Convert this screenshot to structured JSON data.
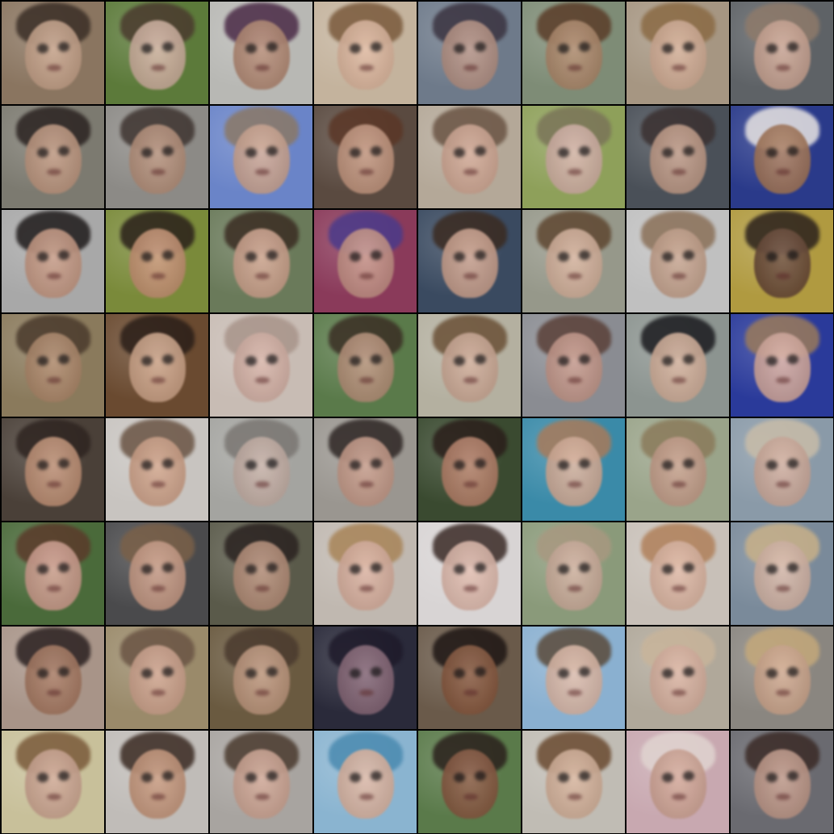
{
  "grid": {
    "rows": 8,
    "columns": 8,
    "tiles": [
      {
        "bg": "#8a7560",
        "skin": "#c9a58c",
        "hair": "#3a2e26"
      },
      {
        "bg": "#5c7a3a",
        "skin": "#d1b2a0",
        "hair": "#4a3a2e"
      },
      {
        "bg": "#b8b8b4",
        "skin": "#b58a74",
        "hair": "#4a2a46"
      },
      {
        "bg": "#c4b39d",
        "skin": "#e0b9a0",
        "hair": "#7a5a3c"
      },
      {
        "bg": "#6e7a8a",
        "skin": "#b89486",
        "hair": "#3a3340"
      },
      {
        "bg": "#7e8c76",
        "skin": "#b08a6c",
        "hair": "#5a3c28"
      },
      {
        "bg": "#a69682",
        "skin": "#d6b098",
        "hair": "#8a6a44"
      },
      {
        "bg": "#5e6266",
        "skin": "#cfa896",
        "hair": "#8e7a6a"
      },
      {
        "bg": "#7c7a70",
        "skin": "#c29a82",
        "hair": "#2a2220"
      },
      {
        "bg": "#8c8a86",
        "skin": "#b8927c",
        "hair": "#3e3430"
      },
      {
        "bg": "#6a84c8",
        "skin": "#d0a894",
        "hair": "#8a7866"
      },
      {
        "bg": "#5a4a40",
        "skin": "#c89a82",
        "hair": "#5a3626"
      },
      {
        "bg": "#b4a898",
        "skin": "#d4aa96",
        "hair": "#6a5444"
      },
      {
        "bg": "#8ea05a",
        "skin": "#d6b4a8",
        "hair": "#7a7458"
      },
      {
        "bg": "#4a5058",
        "skin": "#c49e8a",
        "hair": "#3a3030"
      },
      {
        "bg": "#2a3a8a",
        "skin": "#a6785a",
        "hair": "#e8e4e2"
      },
      {
        "bg": "#a8a8a8",
        "skin": "#c89a84",
        "hair": "#1e1a1a"
      },
      {
        "bg": "#7a8a3a",
        "skin": "#c89474",
        "hair": "#2a201a"
      },
      {
        "bg": "#6a7a5a",
        "skin": "#d2a690",
        "hair": "#3a2c22"
      },
      {
        "bg": "#8a3a5a",
        "skin": "#c89488",
        "hair": "#4a3a8a"
      },
      {
        "bg": "#3a4a60",
        "skin": "#cfa490",
        "hair": "#3a2a20"
      },
      {
        "bg": "#96988a",
        "skin": "#d8b49e",
        "hair": "#5e4630"
      },
      {
        "bg": "#c0c0c0",
        "skin": "#c8a48e",
        "hair": "#8a7058"
      },
      {
        "bg": "#b09a40",
        "skin": "#6a4a38",
        "hair": "#2a201c"
      },
      {
        "bg": "#8a7a5c",
        "skin": "#b08a6c",
        "hair": "#4a3a2c"
      },
      {
        "bg": "#6a4a30",
        "skin": "#d2a88c",
        "hair": "#2a1e18"
      },
      {
        "bg": "#c8bcb4",
        "skin": "#d8b4a8",
        "hair": "#a8948a"
      },
      {
        "bg": "#5a7a4a",
        "skin": "#b8927a",
        "hair": "#3a2e24"
      },
      {
        "bg": "#b4b0a0",
        "skin": "#d0ac98",
        "hair": "#6a5036"
      },
      {
        "bg": "#8a8c92",
        "skin": "#c89a8c",
        "hair": "#5a4038"
      },
      {
        "bg": "#8c9490",
        "skin": "#d6b29c",
        "hair": "#1a1a1e"
      },
      {
        "bg": "#2a3a9a",
        "skin": "#d8aca0",
        "hair": "#9a7a5a"
      },
      {
        "bg": "#4a4038",
        "skin": "#c49478",
        "hair": "#2e2420"
      },
      {
        "bg": "#c8c4c0",
        "skin": "#d2a48a",
        "hair": "#6a5444"
      },
      {
        "bg": "#a4a4a0",
        "skin": "#c8b2a8",
        "hair": "#7a7672"
      },
      {
        "bg": "#9a9690",
        "skin": "#c89c8a",
        "hair": "#2e2624"
      },
      {
        "bg": "#3a4a30",
        "skin": "#b8826a",
        "hair": "#2a1e1a"
      },
      {
        "bg": "#3a8aa8",
        "skin": "#d8b09a",
        "hair": "#a87a5a"
      },
      {
        "bg": "#9aa48a",
        "skin": "#c8a08c",
        "hair": "#8a7a5a"
      },
      {
        "bg": "#8a9aa8",
        "skin": "#d2ae9e",
        "hair": "#c8bca8"
      },
      {
        "bg": "#4a6a3a",
        "skin": "#d2a090",
        "hair": "#5a3a2a"
      },
      {
        "bg": "#4a4a4c",
        "skin": "#cc9e88",
        "hair": "#7a6048"
      },
      {
        "bg": "#5a5a4a",
        "skin": "#b8907a",
        "hair": "#2a2220"
      },
      {
        "bg": "#c0b8b0",
        "skin": "#dcb2a0",
        "hair": "#a88458"
      },
      {
        "bg": "#d8d4d4",
        "skin": "#e2bcae",
        "hair": "#3a2a26"
      },
      {
        "bg": "#8a9a7a",
        "skin": "#d0b09e",
        "hair": "#a89880"
      },
      {
        "bg": "#c8c0b8",
        "skin": "#e0b8a4",
        "hair": "#b0805a"
      },
      {
        "bg": "#7a8a9a",
        "skin": "#d8b8a8",
        "hair": "#c8b088"
      },
      {
        "bg": "#a89488",
        "skin": "#a87a62",
        "hair": "#2a2020"
      },
      {
        "bg": "#9a8a6a",
        "skin": "#d2a690",
        "hair": "#6a5444"
      },
      {
        "bg": "#6a5a40",
        "skin": "#c29a80",
        "hair": "#4a3a2e"
      },
      {
        "bg": "#2a2a3a",
        "skin": "#8a6a7a",
        "hair": "#1e1a2a"
      },
      {
        "bg": "#6a5a4a",
        "skin": "#8a5a40",
        "hair": "#1e1614"
      },
      {
        "bg": "#8ab0d0",
        "skin": "#e0bcaa",
        "hair": "#5a4a3a"
      },
      {
        "bg": "#b0a89a",
        "skin": "#dcb4a2",
        "hair": "#c8b49a"
      },
      {
        "bg": "#8a8680",
        "skin": "#d2aa90",
        "hair": "#c4a87a"
      },
      {
        "bg": "#c8c09a",
        "skin": "#d0a894",
        "hair": "#7a5a3a"
      },
      {
        "bg": "#c0bcb8",
        "skin": "#c8987c",
        "hair": "#3a2a22"
      },
      {
        "bg": "#a8a4a0",
        "skin": "#d2a896",
        "hair": "#4a3a2e"
      },
      {
        "bg": "#8ab4d0",
        "skin": "#e0b8a4",
        "hair": "#4a8ab0"
      },
      {
        "bg": "#5a7a4a",
        "skin": "#8a5a42",
        "hair": "#2a201c"
      },
      {
        "bg": "#c0bcb4",
        "skin": "#d8b49c",
        "hair": "#6a4a30"
      },
      {
        "bg": "#c8a8b0",
        "skin": "#d4a898",
        "hair": "#e0d4d0"
      },
      {
        "bg": "#6a6a70",
        "skin": "#c49c8c",
        "hair": "#3a2a26"
      }
    ]
  }
}
